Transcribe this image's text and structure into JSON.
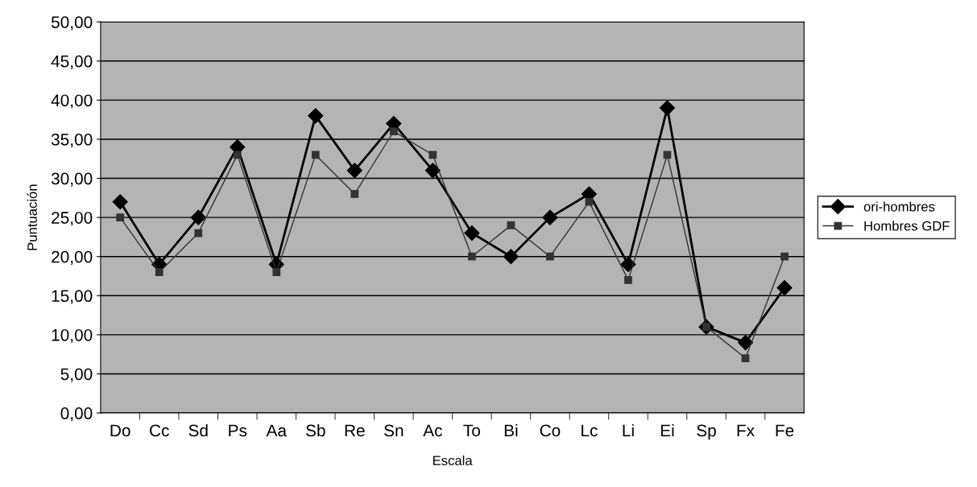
{
  "chart_data": {
    "type": "line",
    "xlabel": "Escala",
    "ylabel": "Puntuación",
    "categories": [
      "Do",
      "Cc",
      "Sd",
      "Ps",
      "Aa",
      "Sb",
      "Re",
      "Sn",
      "Ac",
      "To",
      "Bi",
      "Co",
      "Lc",
      "Li",
      "Ei",
      "Sp",
      "Fx",
      "Fe"
    ],
    "series": [
      {
        "name": "ori-hombres",
        "color": "#000000",
        "marker": "diamond",
        "values": [
          27,
          19,
          25,
          34,
          19,
          38,
          31,
          37,
          31,
          23,
          20,
          25,
          28,
          19,
          39,
          11,
          9,
          16
        ]
      },
      {
        "name": "Hombres GDF",
        "color": "#333333",
        "marker": "square",
        "values": [
          25,
          18,
          23,
          33,
          18,
          33,
          28,
          36,
          33,
          20,
          24,
          20,
          27,
          17,
          33,
          11,
          7,
          20
        ]
      }
    ],
    "ylim": [
      0,
      50
    ],
    "yticks": [
      {
        "value": 0,
        "label": "0,00"
      },
      {
        "value": 5,
        "label": "5,00"
      },
      {
        "value": 10,
        "label": "10,00"
      },
      {
        "value": 15,
        "label": "15,00"
      },
      {
        "value": 20,
        "label": "20,00"
      },
      {
        "value": 25,
        "label": "25,00"
      },
      {
        "value": 30,
        "label": "30,00"
      },
      {
        "value": 35,
        "label": "35,00"
      },
      {
        "value": 40,
        "label": "40,00"
      },
      {
        "value": 45,
        "label": "45,00"
      },
      {
        "value": 50,
        "label": "50,00"
      }
    ],
    "grid": "y",
    "legend": "right",
    "line_style": "solid"
  }
}
